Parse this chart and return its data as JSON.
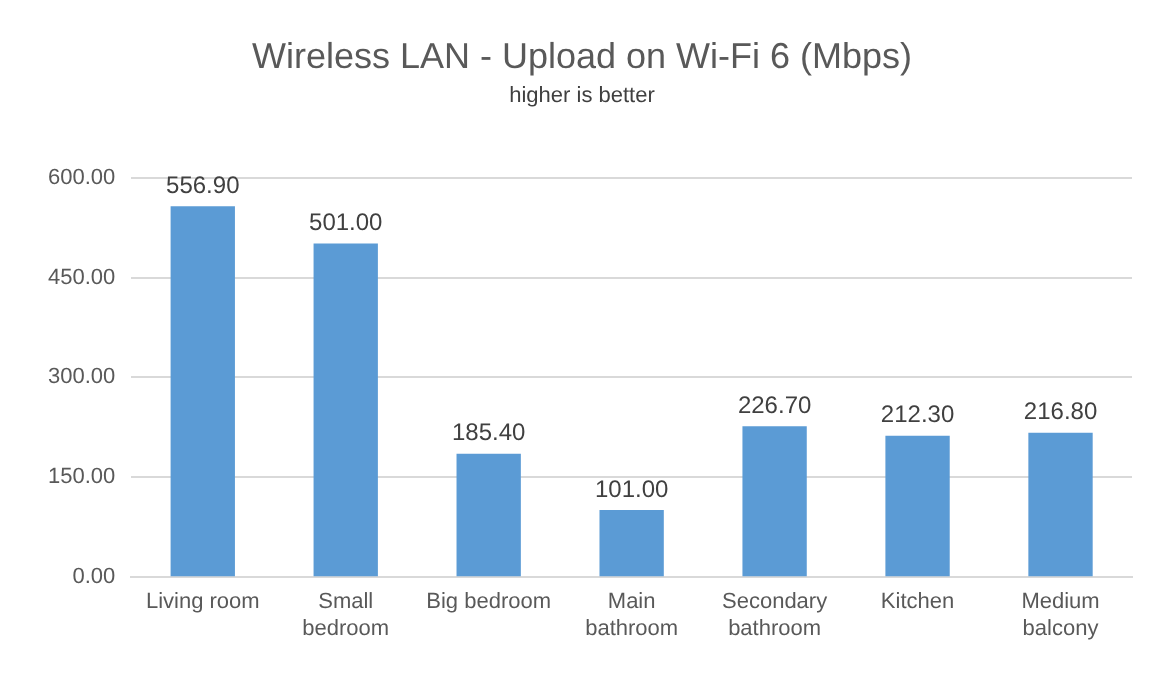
{
  "chart_data": {
    "type": "bar",
    "title": "Wireless LAN - Upload on Wi-Fi 6 (Mbps)",
    "subtitle": "higher is better",
    "categories": [
      "Living room",
      "Small bedroom",
      "Big bedroom",
      "Main bathroom",
      "Secondary bathroom",
      "Kitchen",
      "Medium balcony"
    ],
    "series": [
      {
        "color": "#5b9bd5",
        "values": [
          556.9,
          501.0,
          185.4,
          101.0,
          226.7,
          212.3,
          216.8
        ]
      }
    ],
    "value_labels": [
      "556.90",
      "501.00",
      "185.40",
      "101.00",
      "226.70",
      "212.30",
      "216.80"
    ],
    "ylim": [
      0,
      600
    ],
    "yticks": [
      {
        "value": 0,
        "label": "0.00"
      },
      {
        "value": 150,
        "label": "150.00"
      },
      {
        "value": 300,
        "label": "300.00"
      },
      {
        "value": 450,
        "label": "450.00"
      },
      {
        "value": 600,
        "label": "600.00"
      }
    ],
    "grid": "y",
    "legend": false
  }
}
